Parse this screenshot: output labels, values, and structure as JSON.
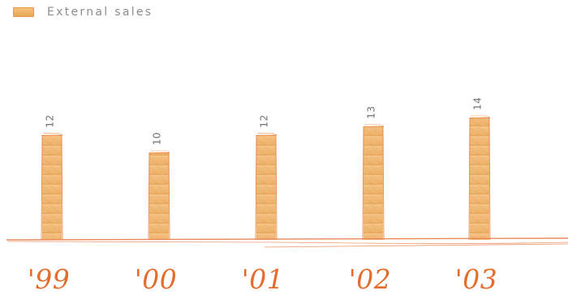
{
  "chart_data": {
    "type": "bar",
    "legend_label": "External sales",
    "categories": [
      "'99",
      "'00",
      "'01",
      "'02",
      "'03"
    ],
    "values": [
      12,
      10,
      12,
      13,
      14
    ],
    "ylim": [
      0,
      14
    ],
    "grid": false,
    "legend_position": "top-left",
    "colors": {
      "bar": "#efb46f",
      "bar_edge": "#e37b3d",
      "axis": "#e9895a",
      "label": "#6f6f6f",
      "year": "#e46d2c"
    }
  }
}
